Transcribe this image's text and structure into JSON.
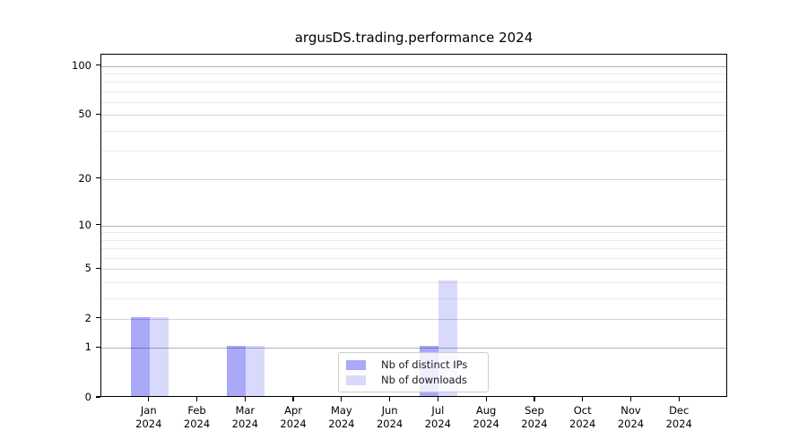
{
  "title": "argusDS.trading.performance 2024",
  "chart_data": {
    "type": "bar",
    "title": "argusDS.trading.performance 2024",
    "categories": [
      "Jan 2024",
      "Feb 2024",
      "Mar 2024",
      "Apr 2024",
      "May 2024",
      "Jun 2024",
      "Jul 2024",
      "Aug 2024",
      "Sep 2024",
      "Oct 2024",
      "Nov 2024",
      "Dec 2024"
    ],
    "series": [
      {
        "name": "Nb of distinct IPs",
        "color": "rgba(10,10,235,0.35)",
        "values": [
          2,
          0,
          1,
          0,
          0,
          0,
          1,
          0,
          0,
          0,
          0,
          0
        ]
      },
      {
        "name": "Nb of downloads",
        "color": "rgba(10,10,235,0.155)",
        "values": [
          2,
          0,
          1,
          0,
          0,
          0,
          4,
          0,
          0,
          0,
          0,
          0
        ]
      }
    ],
    "xlabel": "",
    "ylabel": "",
    "y_scale": "log1p",
    "ylim": [
      0,
      117
    ],
    "y_ticks": [
      0,
      1,
      2,
      5,
      10,
      20,
      50,
      100
    ],
    "y_minor_gridlines": [
      3,
      4,
      6,
      7,
      8,
      9,
      30,
      40,
      60,
      70,
      80,
      90
    ],
    "grid": "on",
    "legend_position": "lower center inside plot"
  }
}
